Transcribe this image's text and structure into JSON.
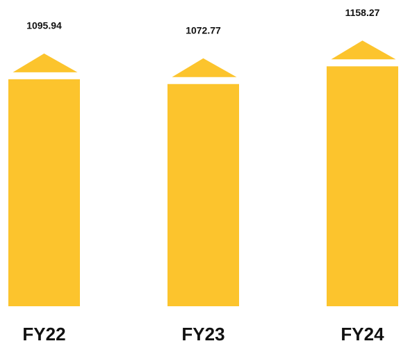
{
  "chart_data": {
    "type": "bar",
    "categories": [
      "FY22",
      "FY23",
      "FY24"
    ],
    "values": [
      1095.94,
      1072.77,
      1158.27
    ],
    "color": "#fcc42d"
  }
}
